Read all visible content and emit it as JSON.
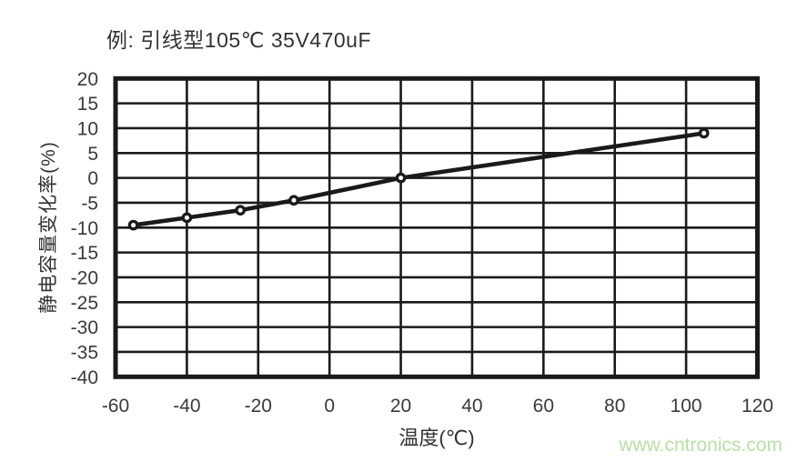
{
  "title": "例: 引线型105℃ 35V470uF",
  "watermark": {
    "text": "www.cntronics.com",
    "color": "#b9e0a6"
  },
  "chart_data": {
    "type": "line",
    "title": "例: 引线型105℃ 35V470uF",
    "xlabel": "温度(℃)",
    "ylabel": "静电容量变化率(%)",
    "xlim": [
      -60,
      120
    ],
    "ylim": [
      -40,
      20
    ],
    "x_ticks": [
      -60,
      -40,
      -20,
      0,
      20,
      40,
      60,
      80,
      100,
      120
    ],
    "y_ticks": [
      20,
      15,
      10,
      5,
      0,
      -5,
      -10,
      -15,
      -20,
      -25,
      -30,
      -35,
      -40
    ],
    "grid": true,
    "legend": false,
    "marker": "open-circle",
    "series": [
      {
        "name": "capacitance-change-rate",
        "x": [
          -55,
          -40,
          -25,
          -10,
          20,
          105
        ],
        "y": [
          -9.5,
          -8,
          -6.5,
          -4.5,
          0,
          9
        ]
      }
    ],
    "colors": {
      "line": "#1a1a1a",
      "grid": "#1a1a1a",
      "border": "#1a1a1a",
      "marker_fill": "#ffffff",
      "text": "#3a3a3a"
    }
  }
}
